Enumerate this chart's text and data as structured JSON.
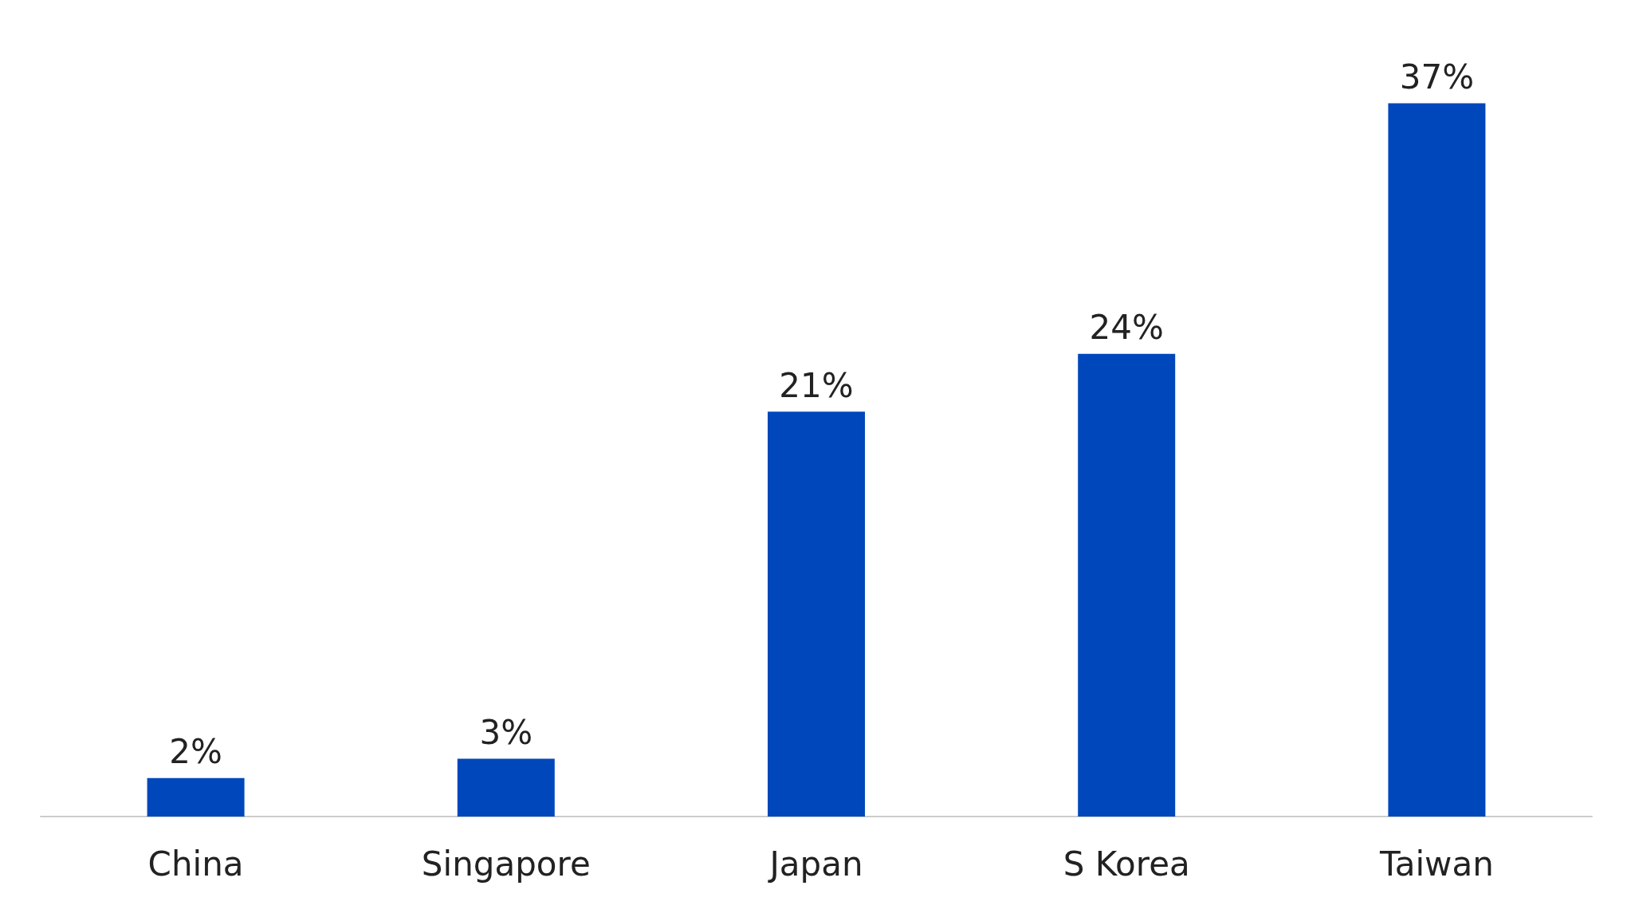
{
  "chart_data": {
    "type": "bar",
    "categories": [
      "China",
      "Singapore",
      "Japan",
      "S Korea",
      "Taiwan"
    ],
    "values": [
      2,
      3,
      21,
      24,
      37
    ],
    "value_labels": [
      "2%",
      "3%",
      "21%",
      "24%",
      "37%"
    ],
    "color": "#0047bb"
  }
}
